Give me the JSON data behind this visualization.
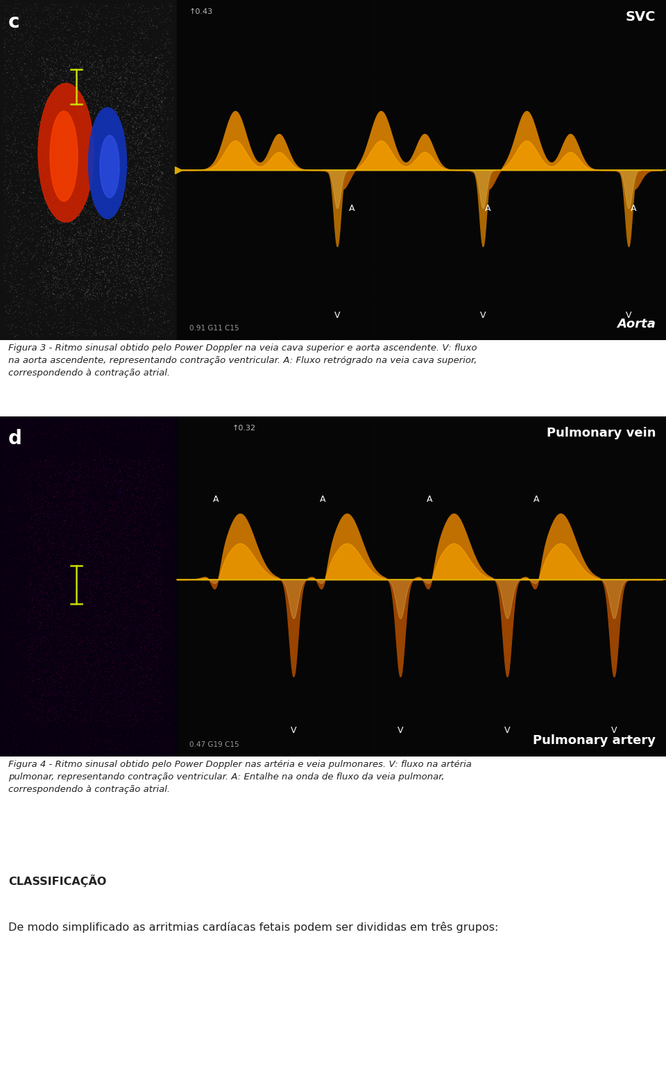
{
  "fig_width": 9.6,
  "fig_height": 15.46,
  "bg_color": "#ffffff",
  "image_c_label": "c",
  "image_d_label": "d",
  "svc_label": "SVC",
  "aorta_label": "Aorta",
  "pulmonary_vein_label": "Pulmonary vein",
  "pulmonary_artery_label": "Pulmonary artery",
  "svc_top_text": "↑0.43",
  "pulv_top_text": "↑0.32",
  "aorta_bottom_text": "0.91 G11 C15",
  "pulv_bottom_text": "0.47 G19 C15",
  "caption3_line1": "Figura 3 - Ritmo sinusal obtido pelo Power Doppler na veia cava superior e aorta ascendente. V: fluxo",
  "caption3_line2": "na aorta ascendente, representando contração ventricular. A: Fluxo retrógrado na veia cava superior,",
  "caption3_line3": "correspondendo à contração atrial.",
  "caption4_line1": "Figura 4 - Ritmo sinusal obtido pelo Power Doppler nas artéria e veia pulmonares. V: fluxo na artéria",
  "caption4_line2": "pulmonar, representando contração ventricular. A: Entalhe na onda de fluxo da veia pulmonar,",
  "caption4_line3": "correspondendo à contração atrial.",
  "section_title": "CLASSIFICAÇÃO",
  "section_text": "De modo simplificado as arritmias cardíacas fetais podem ser divididas em três grupos:",
  "text_color": "#222222",
  "caption_fontsize": 9.5,
  "section_fontsize": 11.5
}
